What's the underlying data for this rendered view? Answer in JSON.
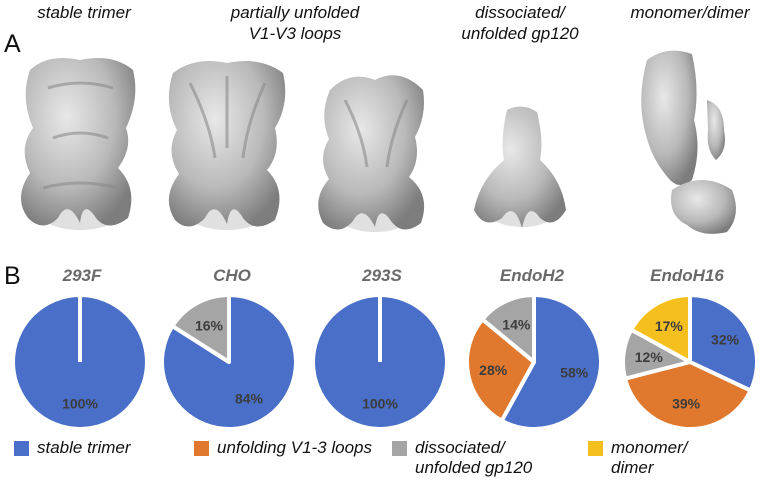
{
  "panel_a": {
    "letter": "A",
    "class_labels": [
      "stable trimer",
      "partially unfolded\nV1-V3 loops",
      "dissociated/\nunfolded gp120",
      "monomer/dimer"
    ]
  },
  "panel_b": {
    "letter": "B"
  },
  "colors": {
    "stable_trimer": "#4a6fc8",
    "unfolding_loops": "#e0792d",
    "dissociated": "#a5a5a5",
    "monomer_dimer": "#f5bf1d"
  },
  "legend": [
    {
      "label": "stable trimer",
      "color": "#4a6fc8"
    },
    {
      "label": "unfolding V1-3 loops",
      "color": "#e0792d"
    },
    {
      "label": "dissociated/\nunfolded gp120",
      "color": "#a5a5a5"
    },
    {
      "label": "monomer/\ndimer",
      "color": "#f5bf1d"
    }
  ],
  "chart_data": {
    "type": "pie",
    "series_names": [
      "stable trimer",
      "unfolding V1-3 loops",
      "dissociated/ unfolded gp120",
      "monomer/ dimer"
    ],
    "pies": [
      {
        "title": "293F",
        "slices": [
          {
            "category": "stable trimer",
            "value": 100,
            "label": "100%",
            "color": "#4a6fc8"
          }
        ]
      },
      {
        "title": "CHO",
        "slices": [
          {
            "category": "stable trimer",
            "value": 84,
            "label": "84%",
            "color": "#4a6fc8"
          },
          {
            "category": "dissociated/ unfolded gp120",
            "value": 16,
            "label": "16%",
            "color": "#a5a5a5"
          }
        ]
      },
      {
        "title": "293S",
        "slices": [
          {
            "category": "stable trimer",
            "value": 100,
            "label": "100%",
            "color": "#4a6fc8"
          }
        ]
      },
      {
        "title": "EndoH2",
        "slices": [
          {
            "category": "stable trimer",
            "value": 58,
            "label": "58%",
            "color": "#4a6fc8"
          },
          {
            "category": "unfolding V1-3 loops",
            "value": 28,
            "label": "28%",
            "color": "#e0792d"
          },
          {
            "category": "dissociated/ unfolded gp120",
            "value": 14,
            "label": "14%",
            "color": "#a5a5a5"
          }
        ]
      },
      {
        "title": "EndoH16",
        "slices": [
          {
            "category": "stable trimer",
            "value": 32,
            "label": "32%",
            "color": "#4a6fc8"
          },
          {
            "category": "unfolding V1-3 loops",
            "value": 39,
            "label": "39%",
            "color": "#e0792d"
          },
          {
            "category": "dissociated/ unfolded gp120",
            "value": 12,
            "label": "12%",
            "color": "#a5a5a5"
          },
          {
            "category": "monomer/ dimer",
            "value": 17,
            "label": "17%",
            "color": "#f5bf1d"
          }
        ]
      }
    ],
    "legend_placement": "bottom"
  }
}
